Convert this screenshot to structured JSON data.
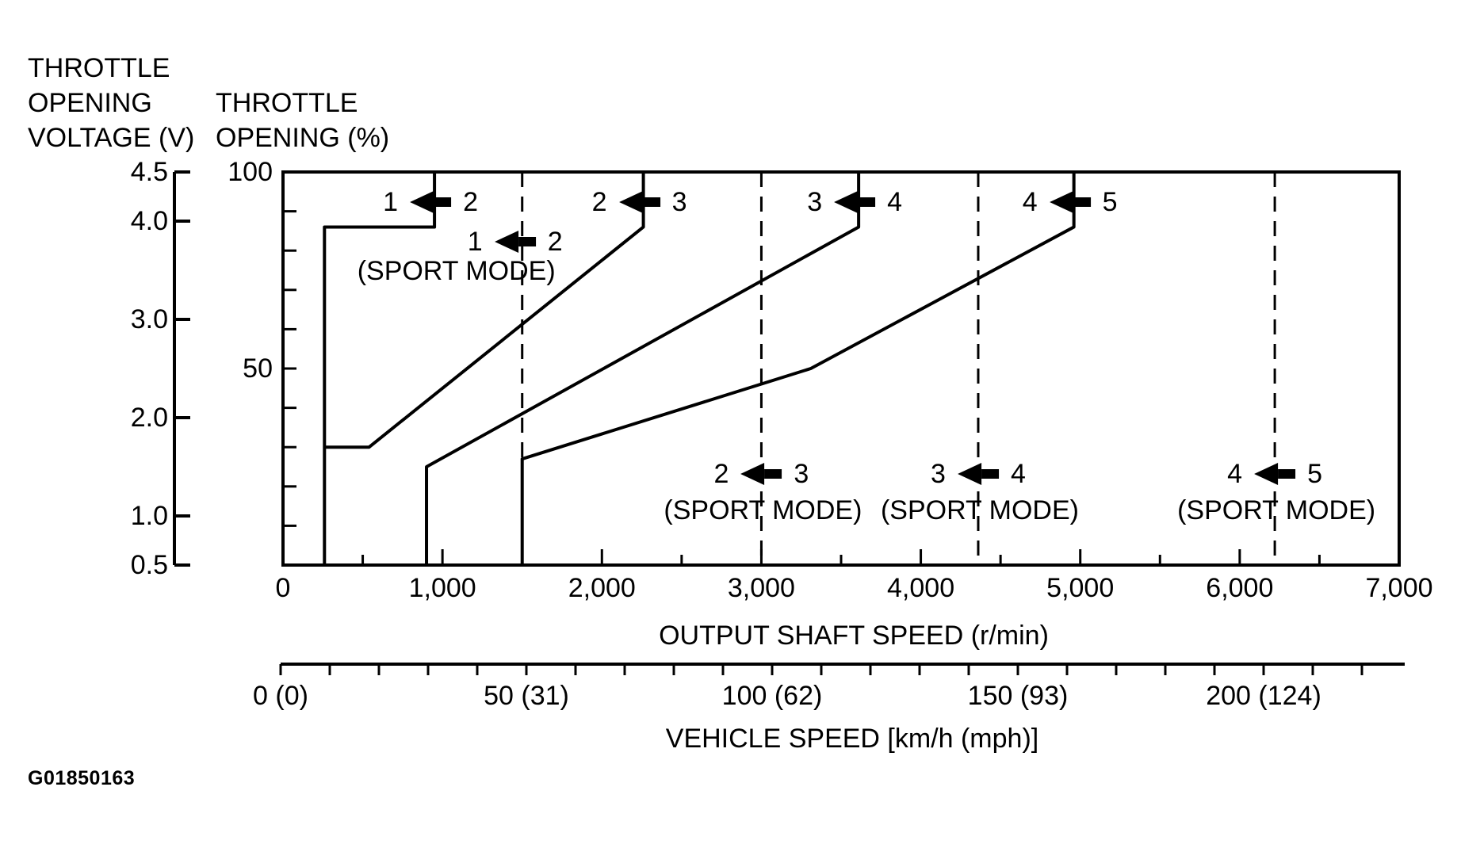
{
  "figure_id": "G01850163",
  "colors": {
    "ink": "#000000",
    "background": "#ffffff"
  },
  "axis_titles": {
    "voltage_lines": [
      "THROTTLE",
      "OPENING",
      "VOLTAGE (V)"
    ],
    "percent_lines": [
      "THROTTLE",
      "OPENING (%)"
    ],
    "x_bottom": "OUTPUT SHAFT SPEED (r/min)",
    "x_vehicle": "VEHICLE SPEED [km/h (mph)]"
  },
  "chart_data": {
    "type": "line",
    "title": "",
    "xlabel": "OUTPUT SHAFT SPEED (r/min)",
    "x2label": "VEHICLE SPEED [km/h (mph)]",
    "ylabel_voltage": "THROTTLE OPENING VOLTAGE (V)",
    "ylabel_percent": "THROTTLE OPENING (%)",
    "xlim_rpm": [
      0,
      7000
    ],
    "ylim_percent": [
      0,
      100
    ],
    "ylim_voltage": [
      0.5,
      4.5
    ],
    "grid": false,
    "legend": "none",
    "x_ticks_rpm": {
      "labels": [
        "0",
        "1,000",
        "2,000",
        "3,000",
        "4,000",
        "5,000",
        "6,000",
        "7,000"
      ],
      "values": [
        0,
        1000,
        2000,
        3000,
        4000,
        5000,
        6000,
        7000
      ],
      "minor_step": 500
    },
    "y_ticks_voltage": {
      "labels": [
        "4.5",
        "4.0",
        "3.0",
        "2.0",
        "1.0",
        "0.5"
      ],
      "values": [
        4.5,
        4.0,
        3.0,
        2.0,
        1.0,
        0.5
      ]
    },
    "y_ticks_percent": {
      "labels": [
        "100",
        "50"
      ],
      "values": [
        100,
        50
      ],
      "minor_step": 10
    },
    "vehicle_ticks": {
      "labels": [
        "0 (0)",
        "50 (31)",
        "100 (62)",
        "150 (93)",
        "200 (124)"
      ],
      "values_kmh": [
        0,
        50,
        100,
        150,
        200
      ],
      "minor_step_kmh": 10,
      "max_kmh": 220
    },
    "series": [
      {
        "name": "downshift-1-from-2",
        "style": "solid",
        "points_rpm_percent": [
          [
            260,
            0
          ],
          [
            260,
            86
          ],
          [
            950,
            86
          ],
          [
            950,
            100
          ]
        ]
      },
      {
        "name": "downshift-2-from-3",
        "style": "solid",
        "points_rpm_percent": [
          [
            260,
            30
          ],
          [
            540,
            30
          ],
          [
            2260,
            86
          ],
          [
            2260,
            100
          ]
        ]
      },
      {
        "name": "downshift-3-from-4",
        "style": "solid",
        "points_rpm_percent": [
          [
            900,
            0
          ],
          [
            900,
            25
          ],
          [
            3610,
            86
          ],
          [
            3610,
            100
          ]
        ]
      },
      {
        "name": "downshift-4-from-5",
        "style": "solid",
        "points_rpm_percent": [
          [
            1500,
            0
          ],
          [
            1500,
            27
          ],
          [
            3310,
            50
          ],
          [
            4960,
            86
          ],
          [
            4960,
            100
          ]
        ]
      }
    ],
    "sport_mode_lines_rpm": [
      1500,
      3000,
      4360,
      6220
    ]
  },
  "shift_labels": {
    "top": [
      {
        "from": "1",
        "to": "2",
        "rpm": 950
      },
      {
        "from": "2",
        "to": "3",
        "rpm": 2260
      },
      {
        "from": "3",
        "to": "4",
        "rpm": 3610
      },
      {
        "from": "4",
        "to": "5",
        "rpm": 4960
      }
    ],
    "sport_upper": {
      "from": "1",
      "to": "2",
      "caption": "(SPORT MODE)",
      "rpm": 1480
    },
    "sport_lower": [
      {
        "from": "2",
        "to": "3",
        "caption": "(SPORT MODE)",
        "rpm": 3000
      },
      {
        "from": "3",
        "to": "4",
        "caption": "(SPORT MODE)",
        "rpm": 4360
      },
      {
        "from": "4",
        "to": "5",
        "caption": "(SPORT MODE)",
        "rpm": 6220
      }
    ]
  }
}
